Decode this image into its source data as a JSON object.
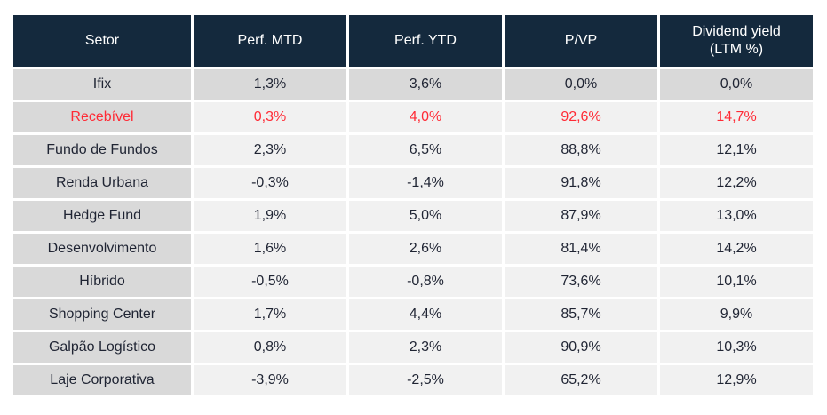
{
  "chart_data": {
    "type": "table",
    "columns": [
      "Setor",
      "Perf. MTD",
      "Perf. YTD",
      "P/VP",
      "Dividend yield (LTM %)"
    ],
    "rows": [
      {
        "cells": [
          "Ifix",
          "1,3%",
          "3,6%",
          "0,0%",
          "0,0%"
        ],
        "shaded": true,
        "highlight": false
      },
      {
        "cells": [
          "Recebível",
          "0,3%",
          "4,0%",
          "92,6%",
          "14,7%"
        ],
        "shaded": false,
        "highlight": true
      },
      {
        "cells": [
          "Fundo de Fundos",
          "2,3%",
          "6,5%",
          "88,8%",
          "12,1%"
        ],
        "shaded": false,
        "highlight": false
      },
      {
        "cells": [
          "Renda Urbana",
          "-0,3%",
          "-1,4%",
          "91,8%",
          "12,2%"
        ],
        "shaded": false,
        "highlight": false
      },
      {
        "cells": [
          "Hedge Fund",
          "1,9%",
          "5,0%",
          "87,9%",
          "13,0%"
        ],
        "shaded": false,
        "highlight": false
      },
      {
        "cells": [
          "Desenvolvimento",
          "1,6%",
          "2,6%",
          "81,4%",
          "14,2%"
        ],
        "shaded": false,
        "highlight": false
      },
      {
        "cells": [
          "Híbrido",
          "-0,5%",
          "-0,8%",
          "73,6%",
          "10,1%"
        ],
        "shaded": false,
        "highlight": false
      },
      {
        "cells": [
          "Shopping Center",
          "1,7%",
          "4,4%",
          "85,7%",
          "9,9%"
        ],
        "shaded": false,
        "highlight": false
      },
      {
        "cells": [
          "Galpão Logístico",
          "0,8%",
          "2,3%",
          "90,9%",
          "10,3%"
        ],
        "shaded": false,
        "highlight": false
      },
      {
        "cells": [
          "Laje Corporativa",
          "-3,9%",
          "-2,5%",
          "65,2%",
          "12,9%"
        ],
        "shaded": false,
        "highlight": false
      }
    ]
  },
  "colors": {
    "header_bg": "#14293D",
    "header_text": "#FFFFFF",
    "shaded_cell_bg": "#D9D9D9",
    "light_cell_bg": "#F1F1F1",
    "data_text": "#1F2433",
    "highlight_text": "#FF2A35",
    "page_bg": "#FFFFFF"
  }
}
